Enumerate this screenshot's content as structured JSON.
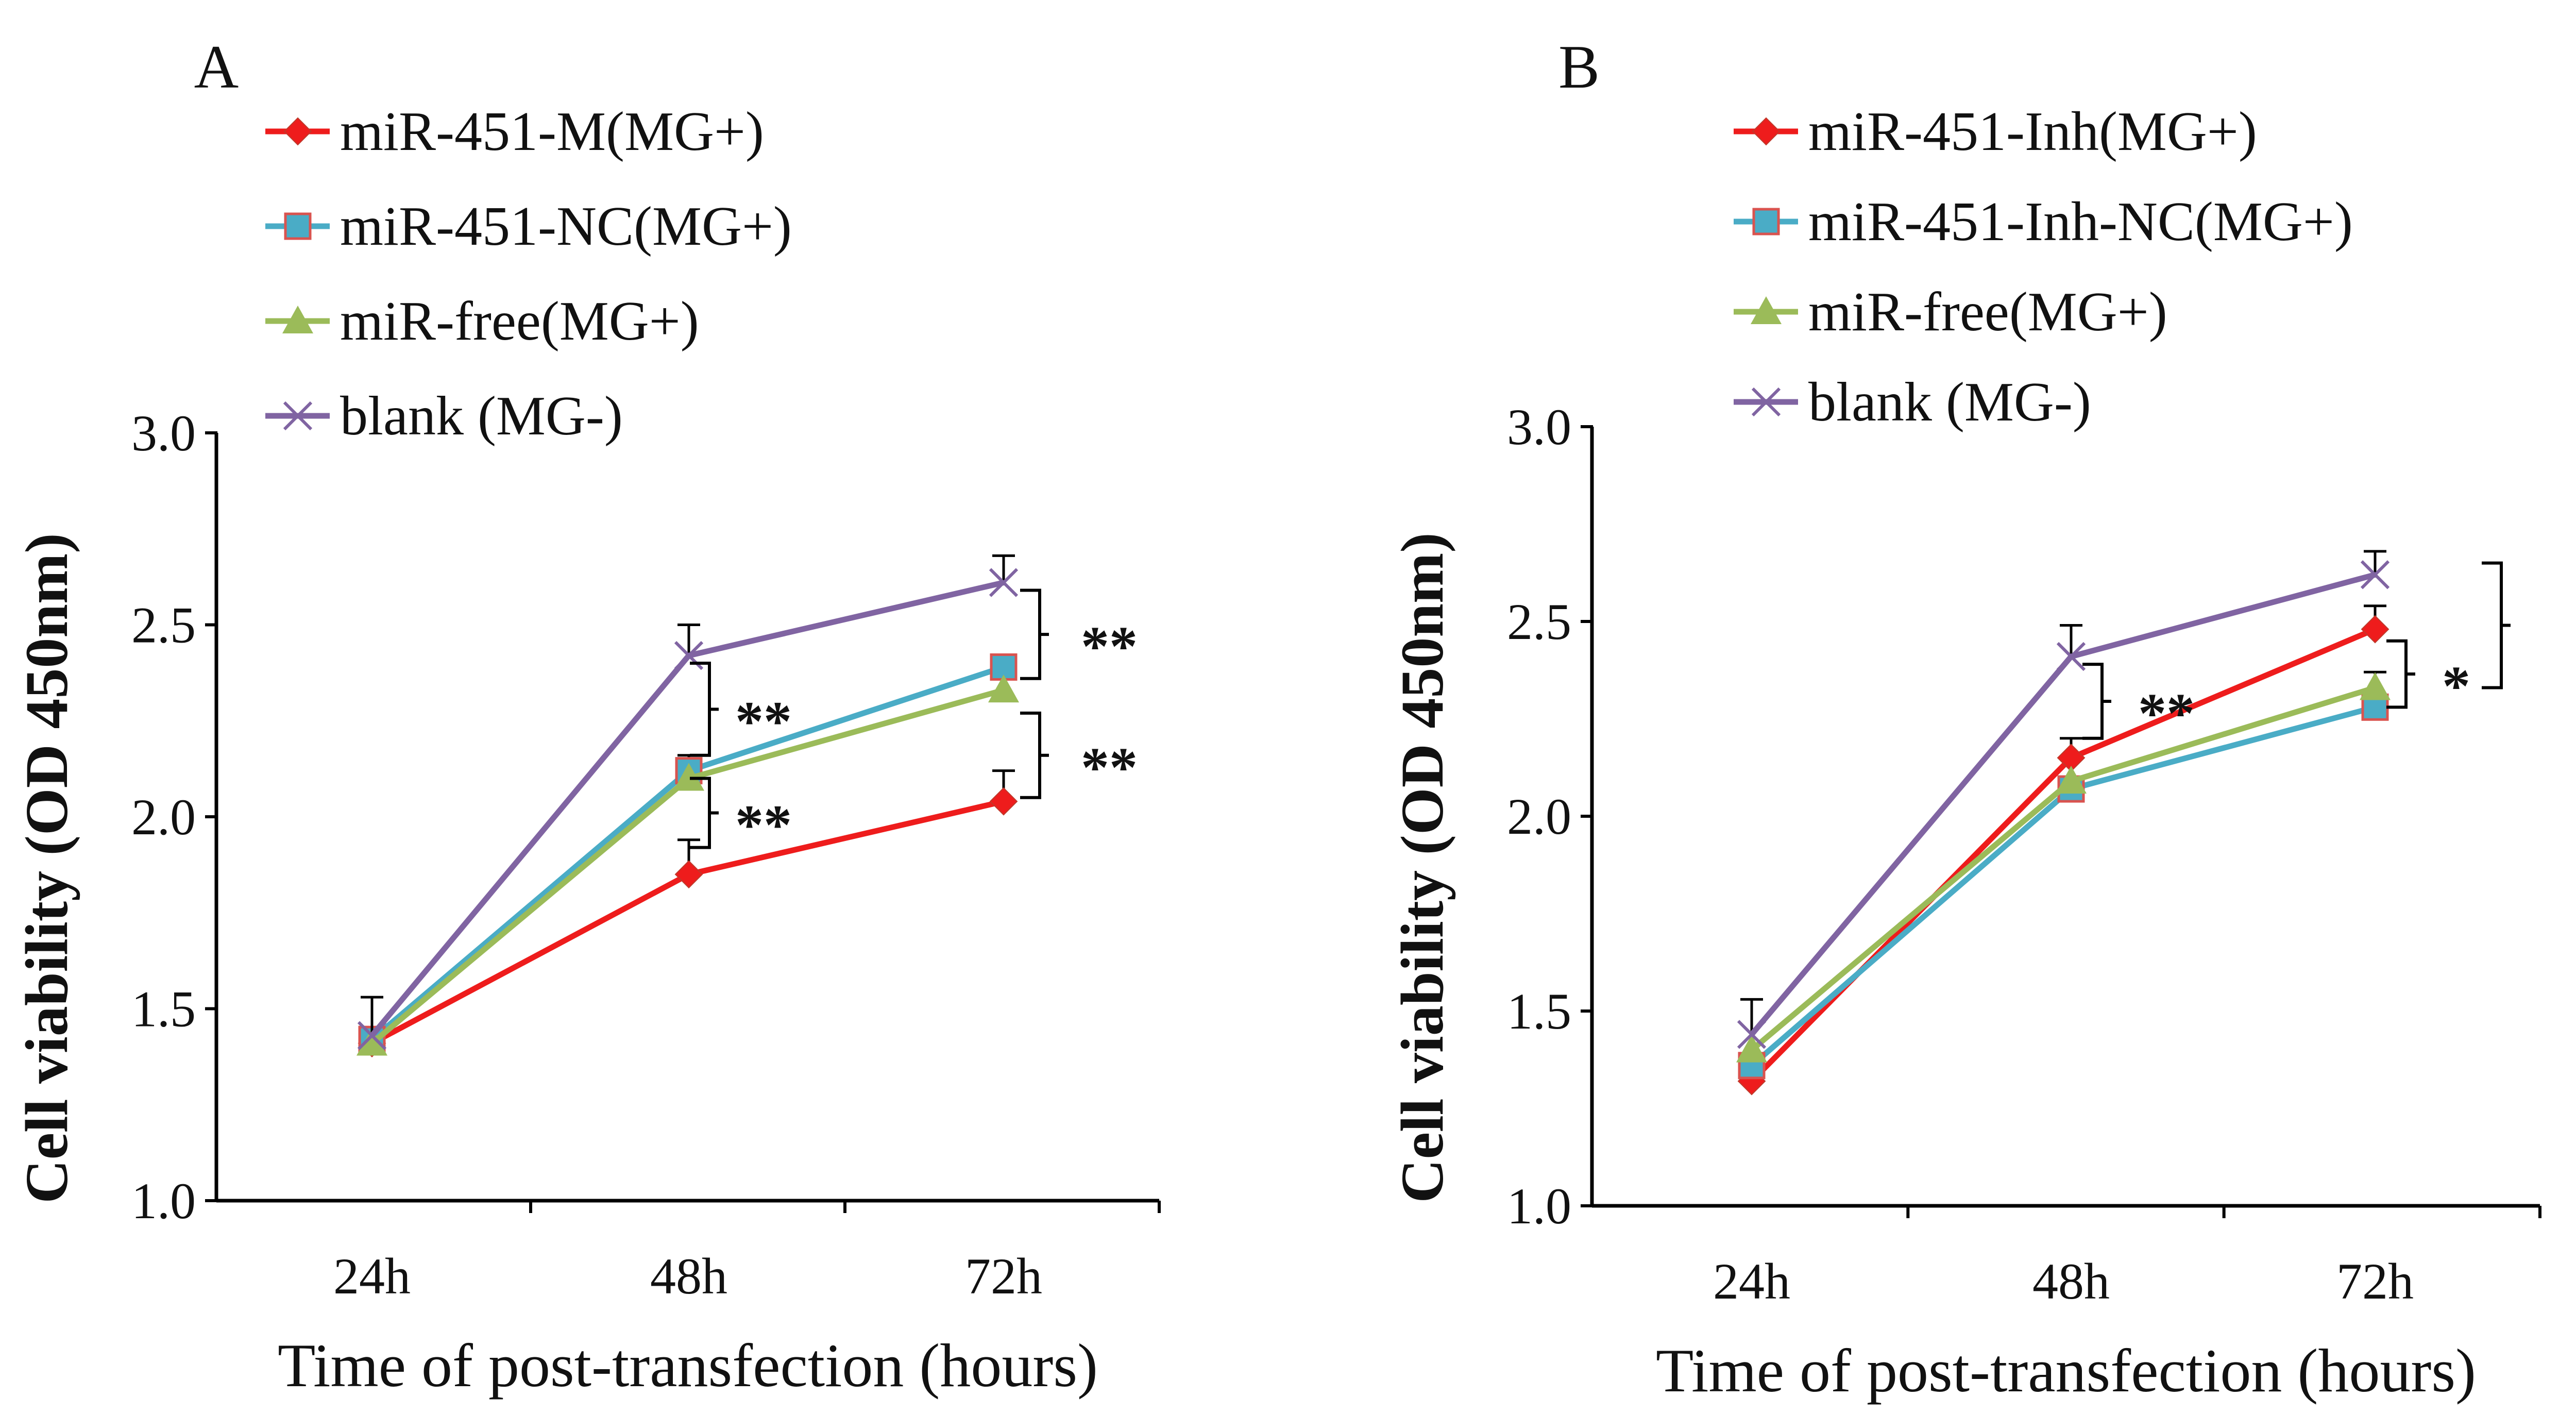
{
  "figure": {
    "colors": {
      "miR-451-M(MG+)": "#ee1c1c",
      "miR-451-NC(MG+)": "#4aacc6",
      "miR-free(MG+)": "#9bbb59",
      "blank (MG-)": "#8064a2",
      "axis": "#000000"
    }
  },
  "chart_data": [
    {
      "type": "line",
      "panel_label": "A",
      "xlabel": "Time of  post-transfection (hours)",
      "ylabel": "Cell viability (OD 450nm)",
      "categories": [
        "24h",
        "48h",
        "72h"
      ],
      "ylim": [
        1.0,
        3.0
      ],
      "yticks": [
        "1.0",
        "1.5",
        "2.0",
        "2.5",
        "3.0"
      ],
      "legend_position": "top",
      "series": [
        {
          "name": "miR-451-M(MG+)",
          "marker": "diamond",
          "color": "#ee1c1c",
          "values": [
            1.41,
            1.85,
            2.04
          ],
          "errors": [
            0.0,
            0.09,
            0.08
          ]
        },
        {
          "name": "miR-451-NC(MG+)",
          "marker": "square",
          "color": "#4aacc6",
          "values": [
            1.42,
            2.12,
            2.39
          ],
          "errors": [
            0.0,
            0.04,
            0.0
          ]
        },
        {
          "name": "miR-free(MG+)",
          "marker": "triangle",
          "color": "#9bbb59",
          "values": [
            1.41,
            2.1,
            2.33
          ],
          "errors": [
            0.0,
            0.0,
            0.0
          ]
        },
        {
          "name": "blank (MG-)",
          "marker": "x",
          "color": "#8064a2",
          "values": [
            1.43,
            2.42,
            2.61
          ],
          "errors": [
            0.1,
            0.08,
            0.07
          ]
        }
      ],
      "annotations": [
        {
          "label": "**",
          "x": "48h",
          "from": 2.4,
          "to": 2.16
        },
        {
          "label": "**",
          "x": "48h",
          "from": 2.1,
          "to": 1.92
        },
        {
          "label": "**",
          "x": "72h",
          "from": 2.59,
          "to": 2.36
        },
        {
          "label": "**",
          "x": "72h",
          "from": 2.27,
          "to": 2.05
        }
      ]
    },
    {
      "type": "line",
      "panel_label": "B",
      "xlabel": "Time of  post-transfection (hours)",
      "ylabel": "Cell viability (OD 450nm)",
      "categories": [
        "24h",
        "48h",
        "72h"
      ],
      "ylim": [
        1.0,
        3.0
      ],
      "yticks": [
        "1.0",
        "1.5",
        "2.0",
        "2.5",
        "3.0"
      ],
      "legend_position": "top",
      "series": [
        {
          "name": "miR-451-Inh(MG+)",
          "marker": "diamond",
          "color": "#ee1c1c",
          "values": [
            1.32,
            2.15,
            2.48
          ],
          "errors": [
            0.0,
            0.05,
            0.06
          ]
        },
        {
          "name": "miR-451-Inh-NC(MG+)",
          "marker": "square",
          "color": "#4aacc6",
          "values": [
            1.36,
            2.07,
            2.28
          ],
          "errors": [
            0.0,
            0.0,
            0.0
          ]
        },
        {
          "name": "miR-free(MG+)",
          "marker": "triangle",
          "color": "#9bbb59",
          "values": [
            1.4,
            2.09,
            2.33
          ],
          "errors": [
            0.0,
            0.0,
            0.04
          ]
        },
        {
          "name": "blank (MG-)",
          "marker": "x",
          "color": "#8064a2",
          "values": [
            1.44,
            2.41,
            2.62
          ],
          "errors": [
            0.09,
            0.08,
            0.06
          ]
        }
      ],
      "annotations": [
        {
          "label": "**",
          "x": "48h",
          "from": 2.39,
          "to": 2.2
        },
        {
          "label": "*",
          "x": "72h",
          "from": 2.45,
          "to": 2.28
        },
        {
          "label": "**",
          "x": "72h",
          "from": 2.65,
          "to": 2.33
        }
      ]
    }
  ]
}
